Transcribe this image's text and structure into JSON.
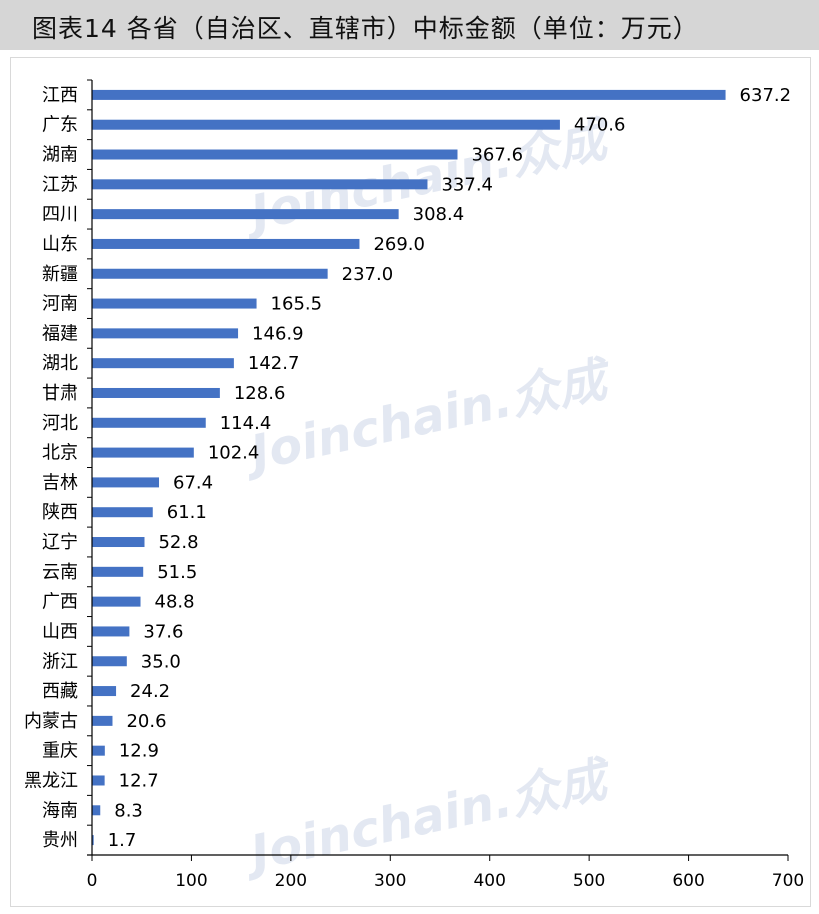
{
  "title": "图表14  各省（自治区、直辖市）中标金额（单位：万元）",
  "watermark": "Joinchain.众成",
  "colors": {
    "bar": "#4472c4",
    "axis": "#000000",
    "title_bg": "#d6d6d6"
  },
  "chart_data": {
    "type": "bar",
    "orientation": "horizontal",
    "categories": [
      "江西",
      "广东",
      "湖南",
      "江苏",
      "四川",
      "山东",
      "新疆",
      "河南",
      "福建",
      "湖北",
      "甘肃",
      "河北",
      "北京",
      "吉林",
      "陕西",
      "辽宁",
      "云南",
      "广西",
      "山西",
      "浙江",
      "西藏",
      "内蒙古",
      "重庆",
      "黑龙江",
      "海南",
      "贵州"
    ],
    "values": [
      637.2,
      470.6,
      367.6,
      337.4,
      308.4,
      269.0,
      237.0,
      165.5,
      146.9,
      142.7,
      128.6,
      114.4,
      102.4,
      67.4,
      61.1,
      52.8,
      51.5,
      48.8,
      37.6,
      35.0,
      24.2,
      20.6,
      12.9,
      12.7,
      8.3,
      1.7
    ],
    "value_labels": [
      "637.2",
      "470.6",
      "367.6",
      "337.4",
      "308.4",
      "269.0",
      "237.0",
      "165.5",
      "146.9",
      "142.7",
      "128.6",
      "114.4",
      "102.4",
      "67.4",
      "61.1",
      "52.8",
      "51.5",
      "48.8",
      "37.6",
      "35.0",
      "24.2",
      "20.6",
      "12.9",
      "12.7",
      "8.3",
      "1.7"
    ],
    "xticks": [
      "0",
      "100",
      "200",
      "300",
      "400",
      "500",
      "600",
      "700"
    ],
    "xlim": [
      0,
      700
    ],
    "grid": false,
    "legend": "none"
  }
}
